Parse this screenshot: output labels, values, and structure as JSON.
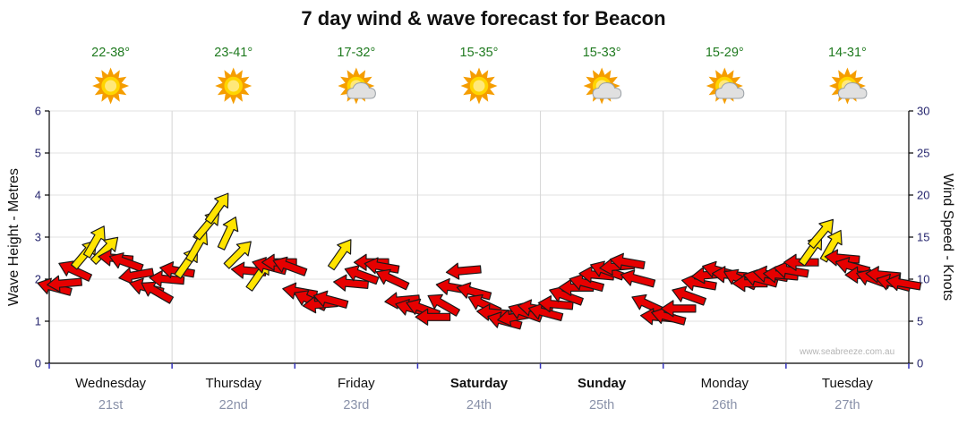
{
  "title": "7 day wind & wave forecast for Beacon",
  "watermark": "www.seabreeze.com.au",
  "axes": {
    "left_label": "Wave Height - Metres",
    "right_label": "Wind Speed - Knots",
    "left_ticks": [
      6,
      5,
      4,
      3,
      2,
      1,
      0
    ],
    "right_ticks": [
      30,
      25,
      20,
      15,
      10,
      5,
      0
    ]
  },
  "days": [
    {
      "name": "Wednesday",
      "date": "21st",
      "temp": "22-38°",
      "icon": "sunny",
      "bold": false
    },
    {
      "name": "Thursday",
      "date": "22nd",
      "temp": "23-41°",
      "icon": "sunny",
      "bold": false
    },
    {
      "name": "Friday",
      "date": "23rd",
      "temp": "17-32°",
      "icon": "partly",
      "bold": false
    },
    {
      "name": "Saturday",
      "date": "24th",
      "temp": "15-35°",
      "icon": "sunny",
      "bold": true
    },
    {
      "name": "Sunday",
      "date": "25th",
      "temp": "15-33°",
      "icon": "partly",
      "bold": true
    },
    {
      "name": "Monday",
      "date": "26th",
      "temp": "15-29°",
      "icon": "partly",
      "bold": false
    },
    {
      "name": "Tuesday",
      "date": "27th",
      "temp": "14-31°",
      "icon": "partly",
      "bold": false
    }
  ],
  "colors": {
    "arrow_red": "#e60000",
    "arrow_yellow": "#ffe400",
    "arrow_outline": "#1a1a1a",
    "temp_text": "#1f7a1f",
    "tick_text": "#26266e",
    "day_text": "#111111",
    "date_text": "#8890a8",
    "grid": "#e2e2e2",
    "day_grid": "#d6d6d6",
    "axis": "#000000",
    "bottom_tick": "#3333bb",
    "sun": "#ffd400",
    "sun_ray": "#f59d00",
    "cloud": "#e0e0e0",
    "cloud_outline": "#9aa0a6"
  },
  "chart_data": {
    "type": "wind-arrows",
    "x_days": [
      "Wednesday",
      "Thursday",
      "Friday",
      "Saturday",
      "Sunday",
      "Monday",
      "Tuesday"
    ],
    "ylim_left_metres": [
      0,
      6
    ],
    "ylim_right_knots": [
      0,
      30
    ],
    "legend": "arrow height = wind speed in knots; arrow colour: r=red, y=yellow; rotation = direction",
    "point_format": [
      "t_days",
      "wind_knots",
      "arrow_rotation_deg",
      "color"
    ],
    "points": [
      [
        0.042,
        9,
        195,
        "r"
      ],
      [
        0.125,
        9.5,
        175,
        "r"
      ],
      [
        0.208,
        11,
        205,
        "r"
      ],
      [
        0.292,
        13,
        -50,
        "y"
      ],
      [
        0.375,
        14.5,
        -60,
        "y"
      ],
      [
        0.458,
        13.5,
        -45,
        "y"
      ],
      [
        0.542,
        12.5,
        185,
        "r"
      ],
      [
        0.625,
        12,
        200,
        "r"
      ],
      [
        0.708,
        10.5,
        170,
        "r"
      ],
      [
        0.792,
        9,
        195,
        "r"
      ],
      [
        0.875,
        8.5,
        210,
        "r"
      ],
      [
        0.958,
        10,
        185,
        "r"
      ],
      [
        1.042,
        11,
        190,
        "r"
      ],
      [
        1.125,
        12,
        -55,
        "y"
      ],
      [
        1.208,
        14,
        -60,
        "y"
      ],
      [
        1.292,
        16.5,
        -50,
        "y"
      ],
      [
        1.375,
        18.5,
        -55,
        "y"
      ],
      [
        1.458,
        15.5,
        -65,
        "y"
      ],
      [
        1.542,
        13,
        -45,
        "y"
      ],
      [
        1.625,
        11,
        185,
        "r"
      ],
      [
        1.708,
        10.5,
        -55,
        "y"
      ],
      [
        1.792,
        11.5,
        195,
        "r"
      ],
      [
        1.875,
        12,
        180,
        "r"
      ],
      [
        1.958,
        11.5,
        200,
        "r"
      ],
      [
        2.042,
        8.5,
        190,
        "r"
      ],
      [
        2.125,
        7.5,
        205,
        "r"
      ],
      [
        2.208,
        7,
        175,
        "r"
      ],
      [
        2.292,
        7.5,
        195,
        "r"
      ],
      [
        2.375,
        13,
        -55,
        "y"
      ],
      [
        2.458,
        9.5,
        185,
        "r"
      ],
      [
        2.542,
        10.5,
        200,
        "r"
      ],
      [
        2.625,
        12,
        180,
        "r"
      ],
      [
        2.708,
        11.5,
        190,
        "r"
      ],
      [
        2.792,
        10,
        205,
        "r"
      ],
      [
        2.875,
        7.5,
        175,
        "r"
      ],
      [
        2.958,
        6.5,
        195,
        "r"
      ],
      [
        3.042,
        6.5,
        200,
        "r"
      ],
      [
        3.125,
        5.5,
        180,
        "r"
      ],
      [
        3.208,
        7,
        210,
        "r"
      ],
      [
        3.292,
        9,
        190,
        "r"
      ],
      [
        3.375,
        11,
        175,
        "r"
      ],
      [
        3.458,
        8.5,
        195,
        "r"
      ],
      [
        3.542,
        7,
        205,
        "r"
      ],
      [
        3.625,
        6,
        185,
        "r"
      ],
      [
        3.708,
        5,
        195,
        "r"
      ],
      [
        3.792,
        5.5,
        170,
        "r"
      ],
      [
        3.875,
        6,
        200,
        "r"
      ],
      [
        3.958,
        6.5,
        190,
        "r"
      ],
      [
        4.042,
        6,
        195,
        "r"
      ],
      [
        4.125,
        7,
        185,
        "r"
      ],
      [
        4.208,
        8,
        200,
        "r"
      ],
      [
        4.292,
        9,
        180,
        "r"
      ],
      [
        4.375,
        9.5,
        195,
        "r"
      ],
      [
        4.458,
        10.5,
        185,
        "r"
      ],
      [
        4.542,
        11,
        200,
        "r"
      ],
      [
        4.625,
        11.5,
        175,
        "r"
      ],
      [
        4.708,
        12,
        190,
        "r"
      ],
      [
        4.792,
        10,
        195,
        "r"
      ],
      [
        4.875,
        7,
        205,
        "r"
      ],
      [
        4.958,
        5.5,
        185,
        "r"
      ],
      [
        5.042,
        5.5,
        195,
        "r"
      ],
      [
        5.125,
        6.5,
        180,
        "r"
      ],
      [
        5.208,
        8,
        200,
        "r"
      ],
      [
        5.292,
        9.5,
        190,
        "r"
      ],
      [
        5.375,
        10.5,
        175,
        "r"
      ],
      [
        5.458,
        11,
        195,
        "r"
      ],
      [
        5.542,
        10.5,
        185,
        "r"
      ],
      [
        5.625,
        10,
        205,
        "r"
      ],
      [
        5.708,
        9.5,
        180,
        "r"
      ],
      [
        5.792,
        10,
        195,
        "r"
      ],
      [
        5.875,
        10.5,
        190,
        "r"
      ],
      [
        5.958,
        10.5,
        185,
        "r"
      ],
      [
        6.042,
        11,
        190,
        "r"
      ],
      [
        6.125,
        12,
        180,
        "r"
      ],
      [
        6.208,
        13.5,
        -55,
        "y"
      ],
      [
        6.292,
        15.5,
        -50,
        "y"
      ],
      [
        6.375,
        14,
        -60,
        "y"
      ],
      [
        6.458,
        12.5,
        185,
        "r"
      ],
      [
        6.542,
        11.5,
        195,
        "r"
      ],
      [
        6.625,
        10.5,
        180,
        "r"
      ],
      [
        6.708,
        10,
        200,
        "r"
      ],
      [
        6.792,
        10.5,
        185,
        "r"
      ],
      [
        6.875,
        9.5,
        195,
        "r"
      ],
      [
        6.958,
        9.5,
        190,
        "r"
      ]
    ]
  }
}
